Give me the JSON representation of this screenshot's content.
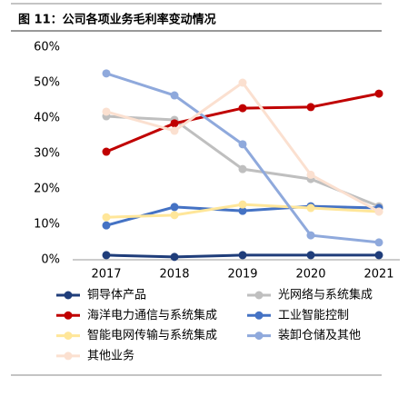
{
  "chart_data": {
    "type": "line",
    "title": "图 11：公司各项业务毛利率变动情况",
    "categories": [
      "2017",
      "2018",
      "2019",
      "2020",
      "2021"
    ],
    "ylim": [
      0,
      60
    ],
    "yticks": [
      {
        "value": 0,
        "label": "0%"
      },
      {
        "value": 10,
        "label": "10%"
      },
      {
        "value": 20,
        "label": "20%"
      },
      {
        "value": 30,
        "label": "30%"
      },
      {
        "value": 40,
        "label": "40%"
      },
      {
        "value": 50,
        "label": "50%"
      },
      {
        "value": 60,
        "label": "60%"
      }
    ],
    "series": [
      {
        "name": "铜导体产品",
        "color": "#1f3d7a",
        "values": [
          1.3,
          0.8,
          1.3,
          1.3,
          1.3
        ]
      },
      {
        "name": "光网络与系统集成",
        "color": "#bfbfbf",
        "values": [
          40.5,
          39.5,
          25.6,
          22.8,
          15.1
        ]
      },
      {
        "name": "海洋电力通信与系统集成",
        "color": "#c00000",
        "values": [
          30.5,
          38.5,
          42.8,
          43.1,
          46.9
        ]
      },
      {
        "name": "工业智能控制",
        "color": "#4472c4",
        "values": [
          9.7,
          14.9,
          13.8,
          15.1,
          14.6
        ]
      },
      {
        "name": "智能电网传输与系统集成",
        "color": "#ffe699",
        "values": [
          12,
          12.6,
          15.6,
          14.6,
          13.6
        ]
      },
      {
        "name": "装卸仓储及其他",
        "color": "#8fa9dc",
        "values": [
          52.6,
          46.4,
          32.6,
          6.9,
          4.9
        ]
      },
      {
        "name": "其他业务",
        "color": "#fbe0d0",
        "values": [
          41.8,
          36.4,
          50,
          24,
          13.6
        ]
      }
    ]
  }
}
